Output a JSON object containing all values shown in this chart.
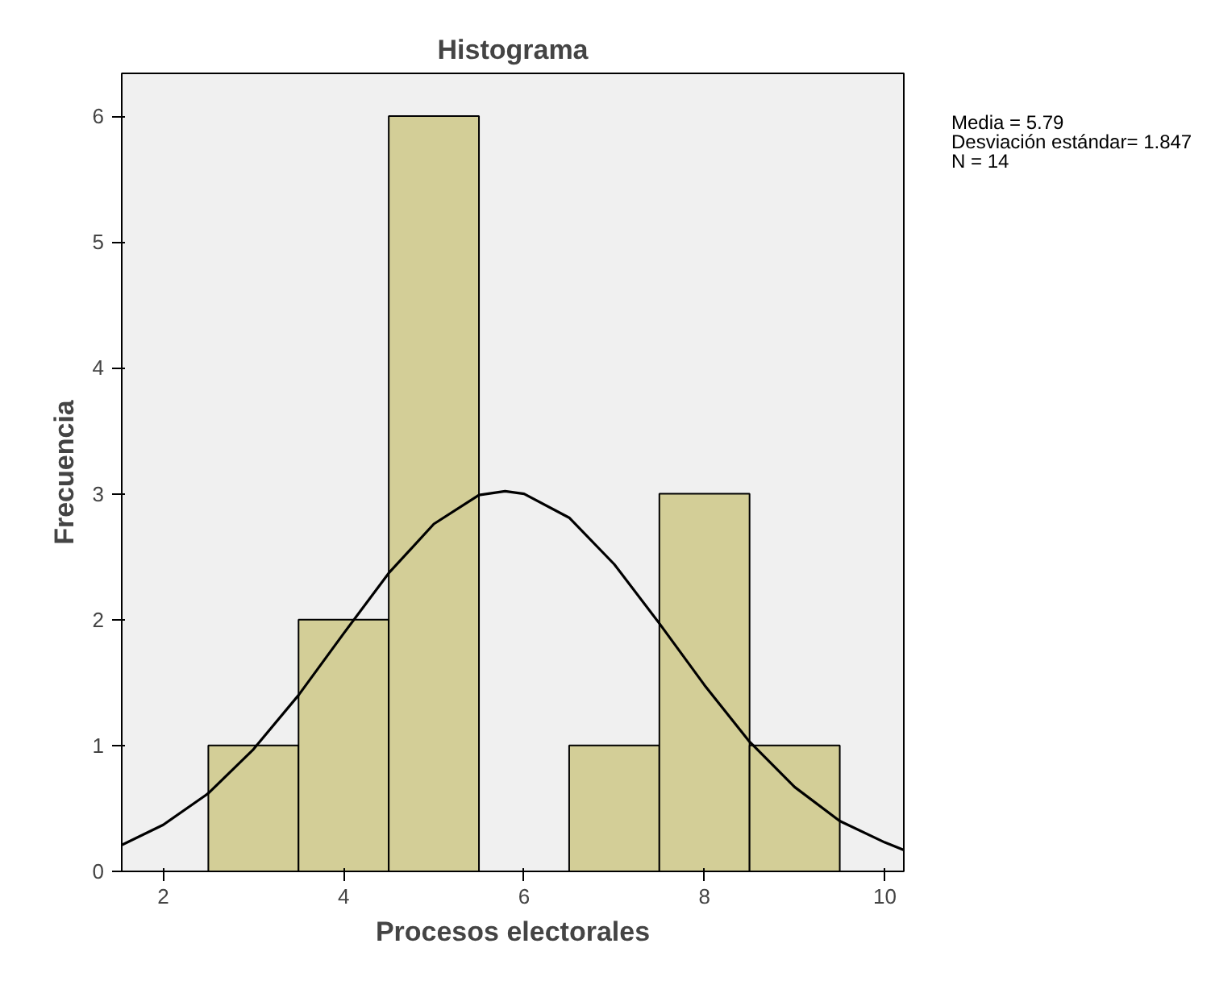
{
  "chart_data": {
    "type": "histogram",
    "title": "Histograma",
    "xlabel": "Procesos electorales",
    "ylabel": "Frecuencia",
    "bins": [
      2.5,
      3.5,
      4.5,
      5.5,
      6.5,
      7.5,
      8.5,
      9.5
    ],
    "values": [
      1,
      2,
      6,
      0,
      1,
      3,
      1
    ],
    "color": "#d3ce97",
    "series": [
      {
        "type": "line",
        "color": "#000000",
        "x": [
          1.54,
          2,
          2.5,
          3,
          3.5,
          4,
          4.5,
          5,
          5.5,
          5.79,
          6,
          6.5,
          7,
          7.5,
          8,
          8.5,
          9,
          9.5,
          10,
          10.21
        ],
        "values": [
          0.21,
          0.37,
          0.62,
          0.97,
          1.4,
          1.89,
          2.37,
          2.76,
          2.99,
          3.02,
          3.0,
          2.81,
          2.44,
          1.97,
          1.48,
          1.03,
          0.67,
          0.4,
          0.23,
          0.17
        ]
      }
    ],
    "xlim": [
      1.54,
      10.21
    ],
    "ylim": [
      0,
      6.34
    ],
    "xticks": [
      2,
      4,
      6,
      8,
      10
    ],
    "yticks": [
      0,
      1,
      2,
      3,
      4,
      5,
      6
    ],
    "grid": false,
    "annotations": [
      "Media = 5.79",
      "Desviación estándar= 1.847",
      "N = 14"
    ]
  }
}
